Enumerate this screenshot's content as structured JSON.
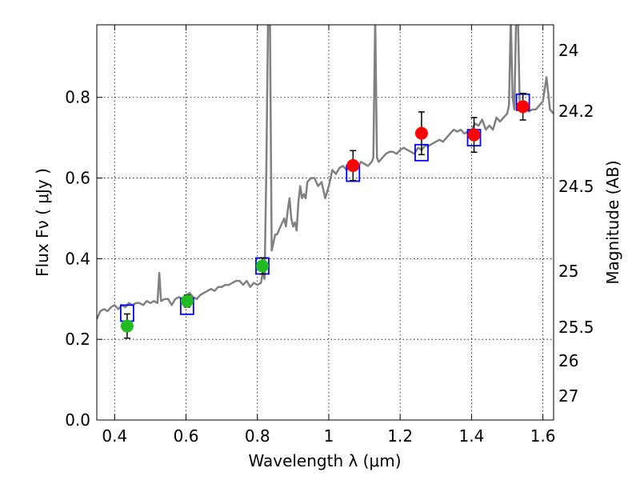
{
  "chart_data": {
    "type": "scatter",
    "xlabel": "Wavelength  λ (μm)",
    "ylabel": "Flux  Fν  ( μJy )",
    "y2label": "Magnitude (AB)",
    "xlim": [
      0.35,
      1.63
    ],
    "ylim": [
      0.0,
      0.98
    ],
    "x_ticks": [
      0.4,
      0.6,
      0.8,
      1.0,
      1.2,
      1.4,
      1.6
    ],
    "x_tick_labels": [
      "0.4",
      "0.6",
      "0.8",
      "1",
      "1.2",
      "1.4",
      "1.6"
    ],
    "y_ticks": [
      0.0,
      0.2,
      0.4,
      0.6,
      0.8
    ],
    "y_tick_labels": [
      "0.0",
      "0.2",
      "0.4",
      "0.6",
      "0.8"
    ],
    "mag_ticks": [
      "24",
      "24.2",
      "24.5",
      "25",
      "25.5",
      "26",
      "27"
    ],
    "grid": true,
    "colors": {
      "spectrum": "#808080",
      "model": "#0000ff",
      "optical": "#22bb22",
      "nir": "#ff0000",
      "errorbar": "#000000"
    },
    "spectrum": {
      "x": [
        0.35,
        0.36,
        0.37,
        0.38,
        0.39,
        0.4,
        0.41,
        0.42,
        0.43,
        0.44,
        0.45,
        0.46,
        0.47,
        0.48,
        0.49,
        0.5,
        0.51,
        0.52,
        0.525,
        0.53,
        0.54,
        0.55,
        0.56,
        0.57,
        0.58,
        0.59,
        0.6,
        0.61,
        0.62,
        0.63,
        0.64,
        0.65,
        0.66,
        0.67,
        0.68,
        0.69,
        0.7,
        0.71,
        0.72,
        0.73,
        0.74,
        0.75,
        0.76,
        0.77,
        0.78,
        0.79,
        0.8,
        0.81,
        0.815,
        0.82,
        0.825,
        0.83,
        0.835,
        0.84,
        0.845,
        0.85,
        0.855,
        0.86,
        0.865,
        0.87,
        0.875,
        0.88,
        0.885,
        0.89,
        0.895,
        0.9,
        0.905,
        0.91,
        0.915,
        0.92,
        0.925,
        0.93,
        0.935,
        0.94,
        0.95,
        0.96,
        0.97,
        0.98,
        0.99,
        1.0,
        1.01,
        1.02,
        1.03,
        1.04,
        1.05,
        1.06,
        1.07,
        1.08,
        1.09,
        1.1,
        1.11,
        1.12,
        1.125,
        1.13,
        1.135,
        1.14,
        1.15,
        1.16,
        1.17,
        1.18,
        1.19,
        1.2,
        1.21,
        1.22,
        1.23,
        1.24,
        1.25,
        1.26,
        1.27,
        1.28,
        1.29,
        1.3,
        1.31,
        1.32,
        1.33,
        1.34,
        1.35,
        1.36,
        1.37,
        1.38,
        1.39,
        1.4,
        1.41,
        1.42,
        1.43,
        1.44,
        1.45,
        1.46,
        1.47,
        1.48,
        1.49,
        1.5,
        1.505,
        1.51,
        1.515,
        1.52,
        1.525,
        1.53,
        1.535,
        1.54,
        1.545,
        1.55,
        1.56,
        1.57,
        1.58,
        1.59,
        1.6,
        1.61,
        1.62,
        1.63
      ],
      "y": [
        0.25,
        0.27,
        0.275,
        0.27,
        0.28,
        0.285,
        0.275,
        0.285,
        0.28,
        0.29,
        0.285,
        0.29,
        0.29,
        0.285,
        0.295,
        0.29,
        0.295,
        0.29,
        0.365,
        0.295,
        0.3,
        0.3,
        0.285,
        0.3,
        0.305,
        0.3,
        0.31,
        0.315,
        0.305,
        0.3,
        0.31,
        0.315,
        0.32,
        0.325,
        0.32,
        0.33,
        0.33,
        0.335,
        0.335,
        0.34,
        0.345,
        0.345,
        0.335,
        0.345,
        0.33,
        0.34,
        0.335,
        0.34,
        0.365,
        0.35,
        0.62,
        1.0,
        1.0,
        0.42,
        0.44,
        0.46,
        0.46,
        0.47,
        0.48,
        0.49,
        0.5,
        0.48,
        0.52,
        0.55,
        0.5,
        0.48,
        0.49,
        0.47,
        0.54,
        0.58,
        0.55,
        0.56,
        0.55,
        0.59,
        0.6,
        0.6,
        0.58,
        0.59,
        0.55,
        0.58,
        0.62,
        0.61,
        0.625,
        0.63,
        0.62,
        0.63,
        0.635,
        0.625,
        0.64,
        0.635,
        0.63,
        0.64,
        0.65,
        1.0,
        0.65,
        0.64,
        0.65,
        0.66,
        0.665,
        0.665,
        0.66,
        0.67,
        0.675,
        0.67,
        0.665,
        0.66,
        0.675,
        0.67,
        0.68,
        0.68,
        0.685,
        0.69,
        0.695,
        0.69,
        0.7,
        0.71,
        0.72,
        0.715,
        0.72,
        0.71,
        0.715,
        0.72,
        0.735,
        0.73,
        0.745,
        0.72,
        0.73,
        0.72,
        0.75,
        0.74,
        0.75,
        0.76,
        0.78,
        1.0,
        0.8,
        0.77,
        1.0,
        1.0,
        0.79,
        0.77,
        0.78,
        0.78,
        0.765,
        0.77,
        0.77,
        0.78,
        0.79,
        0.85,
        0.77,
        0.76
      ]
    },
    "series": [
      {
        "x": [
          0.435,
          0.603,
          0.814
        ],
        "y": [
          0.233,
          0.295,
          0.382
        ],
        "yerr": [
          0.03,
          0.015,
          0.02
        ]
      },
      {
        "x": [
          1.068,
          1.26,
          1.407,
          1.544
        ],
        "y": [
          0.631,
          0.711,
          0.707,
          0.777
        ],
        "yerr": [
          0.037,
          0.053,
          0.043,
          0.033
        ]
      }
    ],
    "model_points": {
      "x": [
        0.435,
        0.603,
        0.814,
        1.068,
        1.26,
        1.407,
        1.544
      ],
      "y": [
        0.265,
        0.282,
        0.382,
        0.612,
        0.663,
        0.7,
        0.788
      ]
    }
  }
}
